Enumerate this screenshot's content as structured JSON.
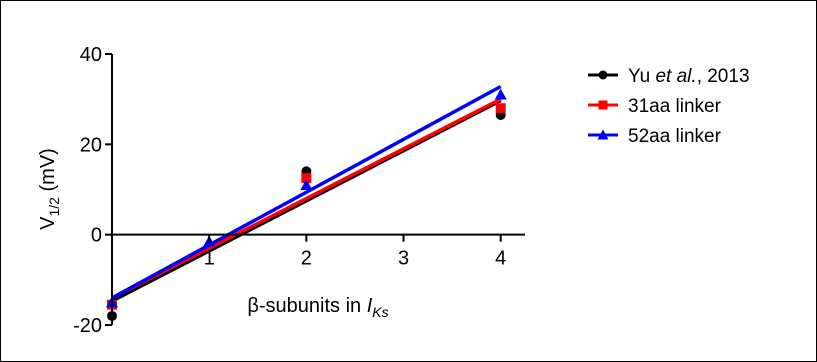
{
  "chart_data": {
    "type": "scatter",
    "title": "",
    "xlabel": {
      "prefix": "β-subunits in ",
      "italic": "I",
      "subscript": "Ks"
    },
    "ylabel": {
      "base": "V",
      "subscript": "1/2",
      "suffix": " (mV)"
    },
    "xlim": [
      0,
      4.25
    ],
    "ylim": [
      -20,
      40
    ],
    "x_ticks": [
      1,
      2,
      3,
      4
    ],
    "x_tick_labels": [
      "1",
      "2",
      "3",
      "4"
    ],
    "y_ticks": [
      -20,
      0,
      20,
      40
    ],
    "y_tick_labels": [
      "-20",
      "0",
      "20",
      "40"
    ],
    "grid": false,
    "legend_position": "right",
    "series": [
      {
        "name": "Yu et al., 2013",
        "name_parts": {
          "prefix": "Yu ",
          "italic": "et al.",
          "suffix": ", 2013"
        },
        "color": "#000000",
        "marker": "circle",
        "points": [
          [
            0,
            -18
          ],
          [
            2,
            14
          ],
          [
            4,
            26.5
          ]
        ],
        "fit": {
          "slope": 11.1,
          "intercept": -14.7
        }
      },
      {
        "name": "31aa linker",
        "color": "#ff0000",
        "marker": "square",
        "points": [
          [
            0,
            -15.5
          ],
          [
            2,
            12.5
          ],
          [
            4,
            28
          ]
        ],
        "fit": {
          "slope": 11.0,
          "intercept": -14.0
        }
      },
      {
        "name": "52aa linker",
        "color": "#0000ff",
        "marker": "triangle",
        "points": [
          [
            0,
            -15
          ],
          [
            1,
            -1.5
          ],
          [
            2,
            11
          ],
          [
            4,
            31
          ]
        ],
        "fit": {
          "slope": 11.7,
          "intercept": -14.0
        }
      }
    ]
  }
}
